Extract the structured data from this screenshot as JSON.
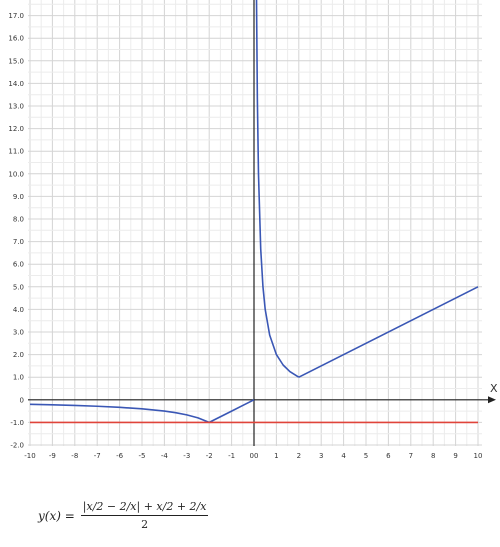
{
  "chart_data": {
    "type": "line",
    "xlabel": "X",
    "xlim": [
      -10,
      10
    ],
    "ylim": [
      -2,
      17.5
    ],
    "grid": true,
    "x_ticks": [
      "-10",
      "-9",
      "-8",
      "-7",
      "-6",
      "-5",
      "-4",
      "-3",
      "-2",
      "-1",
      "0",
      "0",
      "1",
      "2",
      "3",
      "4",
      "5",
      "6",
      "7",
      "8",
      "9",
      "10"
    ],
    "y_ticks": [
      "17.0",
      "16.0",
      "15.0",
      "14.0",
      "13.0",
      "12.0",
      "11.0",
      "10.0",
      "9.0",
      "8.0",
      "7.0",
      "6.0",
      "5.0",
      "4.0",
      "3.0",
      "2.0",
      "1.0",
      "0",
      "-1.0",
      "-2.0"
    ],
    "series": [
      {
        "color": "#3a57b5",
        "segments": [
          {
            "x": [
              -10,
              -9,
              -8,
              -7,
              -6,
              -5,
              -4,
              -3.5,
              -3,
              -2.5,
              -2
            ],
            "y": [
              -0.2,
              -0.222,
              -0.25,
              -0.286,
              -0.333,
              -0.4,
              -0.5,
              -0.571,
              -0.667,
              -0.8,
              -1
            ]
          },
          {
            "x": [
              -2,
              -1.5,
              -1,
              -0.5,
              0
            ],
            "y": [
              -1,
              -0.75,
              -0.5,
              -0.25,
              0
            ]
          },
          {
            "x": [
              0.11,
              0.15,
              0.2,
              0.3,
              0.4,
              0.5,
              0.7,
              1,
              1.3,
              1.6,
              2
            ],
            "y": [
              18.0,
              13.33,
              10.0,
              6.67,
              5.0,
              4.0,
              2.86,
              2.0,
              1.54,
              1.25,
              1.0
            ]
          },
          {
            "x": [
              2,
              10
            ],
            "y": [
              1,
              5
            ]
          }
        ]
      },
      {
        "color": "#e0443a",
        "segments": [
          {
            "x": [
              -10,
              10
            ],
            "y": [
              -1,
              -1
            ]
          }
        ]
      }
    ]
  },
  "formula": {
    "lhs": "y(x) =",
    "numerator": "|x/2 − 2/x| + x/2 + 2/x",
    "denominator": "2"
  }
}
